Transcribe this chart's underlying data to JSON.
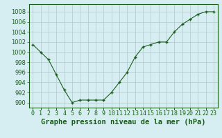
{
  "x": [
    0,
    1,
    2,
    3,
    4,
    5,
    6,
    7,
    8,
    9,
    10,
    11,
    12,
    13,
    14,
    15,
    16,
    17,
    18,
    19,
    20,
    21,
    22,
    23
  ],
  "y": [
    1001.5,
    1000.0,
    998.5,
    995.5,
    992.5,
    990.0,
    990.5,
    990.5,
    990.5,
    990.5,
    992.0,
    994.0,
    996.0,
    999.0,
    1001.0,
    1001.5,
    1002.0,
    1002.0,
    1004.0,
    1005.5,
    1006.5,
    1007.5,
    1008.0,
    1008.0
  ],
  "line_color": "#1a5c1a",
  "marker": "+",
  "bg_color": "#d6eef2",
  "grid_color": "#b0c8cc",
  "title": "Graphe pression niveau de la mer (hPa)",
  "xlabel_ticks": [
    "0",
    "1",
    "2",
    "3",
    "4",
    "5",
    "6",
    "7",
    "8",
    "9",
    "10",
    "11",
    "12",
    "13",
    "14",
    "15",
    "16",
    "17",
    "18",
    "19",
    "20",
    "21",
    "22",
    "23"
  ],
  "yticks": [
    990,
    992,
    994,
    996,
    998,
    1000,
    1002,
    1004,
    1006,
    1008
  ],
  "ylim": [
    989.0,
    1009.5
  ],
  "xlim": [
    -0.5,
    23.5
  ],
  "title_fontsize": 7.5,
  "tick_fontsize": 6,
  "tick_color": "#1a5c1a",
  "border_color": "#1a5c1a"
}
